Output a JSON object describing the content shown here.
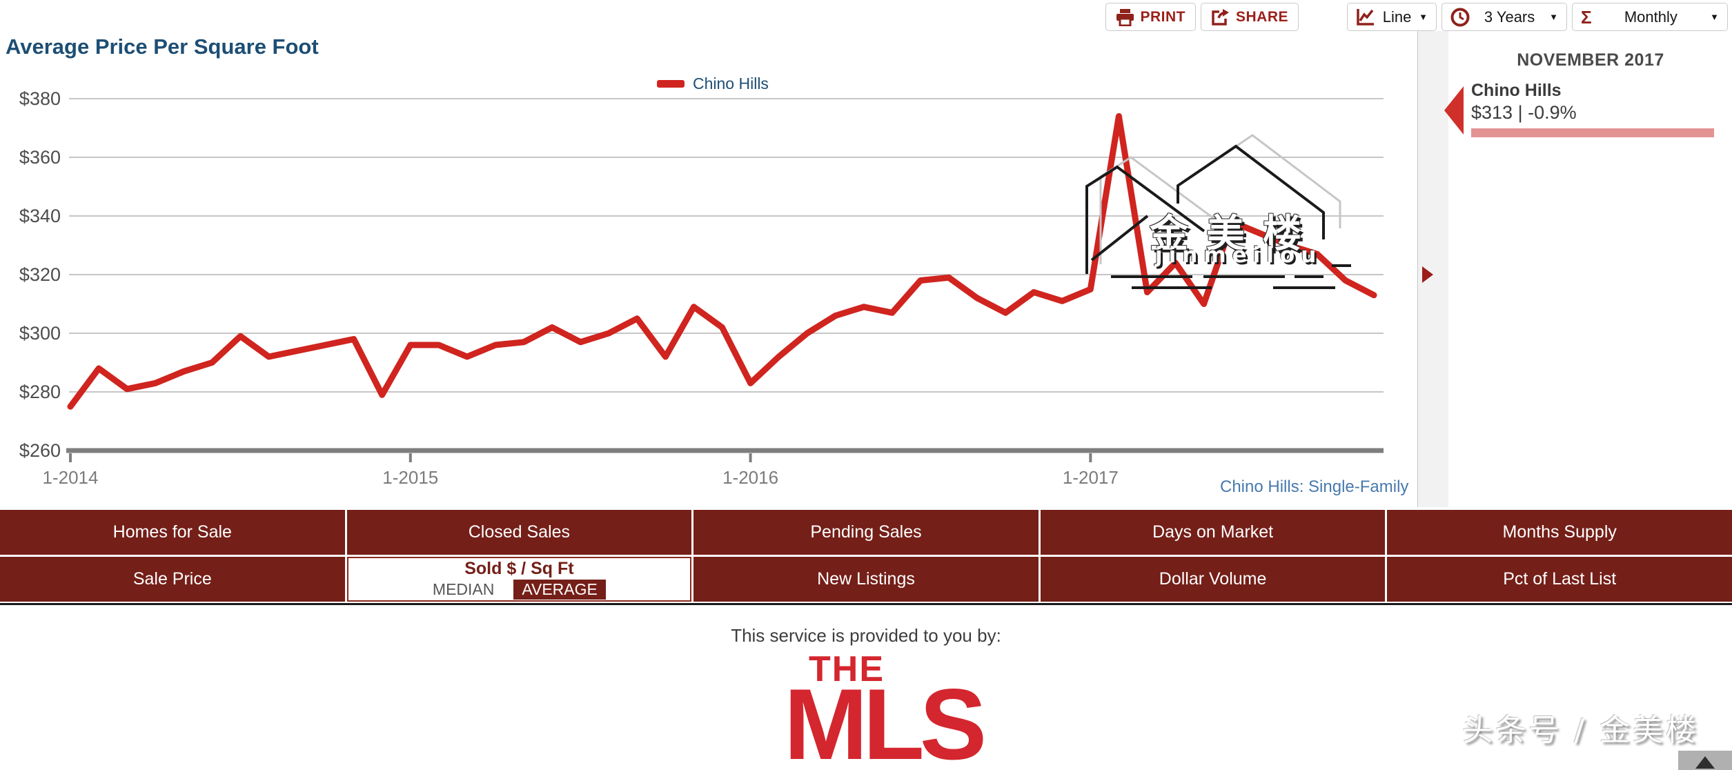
{
  "toolbar": {
    "print_label": "PRINT",
    "share_label": "SHARE",
    "caret_glyph": "▼",
    "chart_type": {
      "label": "Line",
      "icon": "line-chart-icon"
    },
    "time_range": {
      "label": "3 Years",
      "icon": "clock-icon"
    },
    "aggregation": {
      "label": "Monthly",
      "icon": "sigma-icon",
      "icon_glyph": "Σ"
    }
  },
  "chart": {
    "title": "Average Price Per Square Foot",
    "legend_label": "Chino Hills",
    "footnote_link": "Chino Hills: Single-Family"
  },
  "chart_data": {
    "type": "line",
    "title": "Average Price Per Square Foot",
    "x": [
      "1-2014",
      "2-2014",
      "3-2014",
      "4-2014",
      "5-2014",
      "6-2014",
      "7-2014",
      "8-2014",
      "9-2014",
      "10-2014",
      "11-2014",
      "12-2014",
      "1-2015",
      "2-2015",
      "3-2015",
      "4-2015",
      "5-2015",
      "6-2015",
      "7-2015",
      "8-2015",
      "9-2015",
      "10-2015",
      "11-2015",
      "12-2015",
      "1-2016",
      "2-2016",
      "3-2016",
      "4-2016",
      "5-2016",
      "6-2016",
      "7-2016",
      "8-2016",
      "9-2016",
      "10-2016",
      "11-2016",
      "12-2016",
      "1-2017",
      "2-2017",
      "3-2017",
      "4-2017",
      "5-2017",
      "6-2017",
      "7-2017",
      "8-2017",
      "9-2017",
      "10-2017",
      "11-2017"
    ],
    "series": [
      {
        "name": "Chino Hills",
        "color": "#d0241f",
        "values": [
          275,
          288,
          281,
          283,
          287,
          290,
          299,
          292,
          294,
          296,
          298,
          279,
          296,
          296,
          292,
          296,
          297,
          302,
          297,
          300,
          305,
          292,
          309,
          302,
          283,
          292,
          300,
          306,
          309,
          307,
          318,
          319,
          312,
          307,
          314,
          311,
          315,
          374,
          314,
          324,
          310,
          338,
          334,
          330,
          327,
          318,
          313
        ]
      }
    ],
    "xticks": [
      "1-2014",
      "1-2015",
      "1-2016",
      "1-2017"
    ],
    "ylim": [
      260,
      380
    ],
    "ytick_step": 20,
    "ytick_prefix": "$",
    "grid": "horizontal",
    "legend_position": "top-center",
    "current": {
      "period": "NOVEMBER 2017",
      "label": "Chino Hills",
      "value": 313,
      "change_pct": -0.9
    }
  },
  "side_panel": {
    "period": "NOVEMBER 2017",
    "series_name": "Chino Hills",
    "value_text": "$313 | -0.9%"
  },
  "metric_nav": {
    "row1": [
      "Homes for Sale",
      "Closed Sales",
      "Pending Sales",
      "Days on Market",
      "Months Supply"
    ],
    "row2_col1": "Sale Price",
    "active": {
      "title": "Sold $ / Sq Ft",
      "option_median": "MEDIAN",
      "option_average": "AVERAGE",
      "selected": "AVERAGE"
    },
    "row2_col3": "New Listings",
    "row2_col4": "Dollar Volume",
    "row2_col5": "Pct of Last List"
  },
  "footer": {
    "provided_by": "This service is provided to you by:",
    "logo_the": "THE",
    "logo_mls": "MLS",
    "logo_tm": "™"
  },
  "watermarks": {
    "chart_cjk": "金美楼",
    "chart_latin": "jinmeilou",
    "page": "头条号 / 金美楼"
  },
  "colors": {
    "maroon": "#741f18",
    "series_red": "#d0241f",
    "title_blue": "#1d4e74",
    "link_blue": "#4779ac",
    "panel_bar_pink": "#e49393",
    "logo_red": "#d4262e"
  }
}
